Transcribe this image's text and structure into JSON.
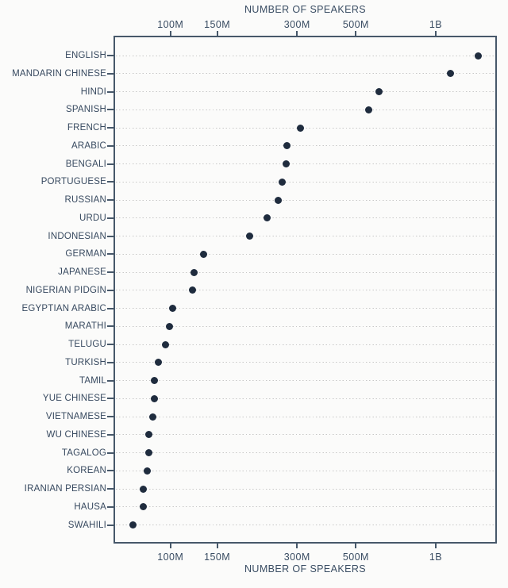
{
  "chart_data": {
    "type": "scatter",
    "subtype": "horizontal-dot-plot",
    "title_top": "NUMBER OF SPEAKERS",
    "title_bottom": "NUMBER OF SPEAKERS",
    "x_scale": "log",
    "xlim_millions": [
      61,
      1700
    ],
    "grid": "dotted horizontal leader lines per category",
    "legend": "none",
    "x_ticks": [
      {
        "label": "100M",
        "value_millions": 100
      },
      {
        "label": "150M",
        "value_millions": 150
      },
      {
        "label": "300M",
        "value_millions": 300
      },
      {
        "label": "500M",
        "value_millions": 500
      },
      {
        "label": "1B",
        "value_millions": 1000
      }
    ],
    "categories": [
      "ENGLISH",
      "MANDARIN CHINESE",
      "HINDI",
      "SPANISH",
      "FRENCH",
      "ARABIC",
      "BENGALI",
      "PORTUGUESE",
      "RUSSIAN",
      "URDU",
      "INDONESIAN",
      "GERMAN",
      "JAPANESE",
      "NIGERIAN PIDGIN",
      "EGYPTIAN ARABIC",
      "MARATHI",
      "TELUGU",
      "TURKISH",
      "TAMIL",
      "YUE CHINESE",
      "VIETNAMESE",
      "WU CHINESE",
      "TAGALOG",
      "KOREAN",
      "IRANIAN PERSIAN",
      "HAUSA",
      "SWAHILI"
    ],
    "values_millions": [
      1450,
      1140,
      610,
      559,
      310,
      274,
      273,
      264,
      255,
      232,
      199,
      133,
      123,
      121,
      102,
      99,
      96,
      90,
      87,
      87,
      86,
      83,
      83,
      82,
      79,
      79,
      72
    ],
    "colors": {
      "dot": "#1f2c3e",
      "frame": "#47586a",
      "text": "#3a4d63",
      "grid_dots": "#c7c7c7",
      "background": "#fbfbfa"
    }
  }
}
